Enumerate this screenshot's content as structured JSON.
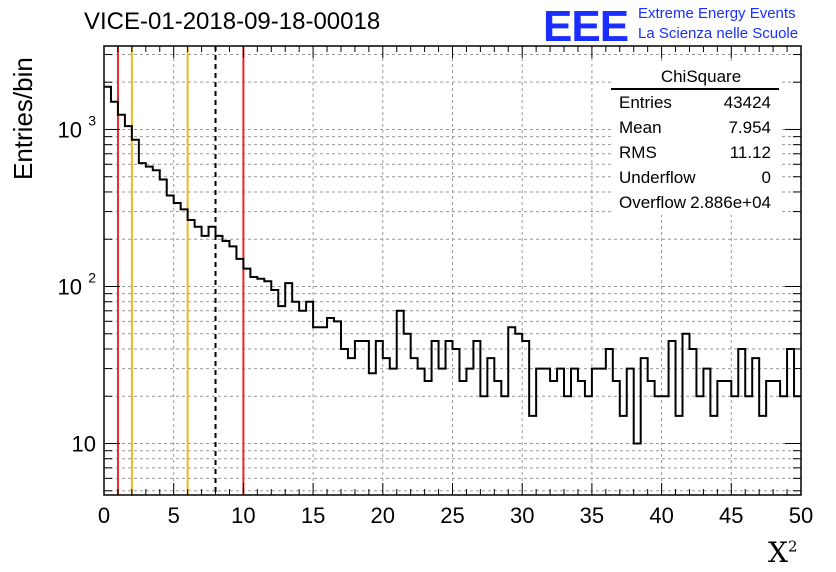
{
  "title": "VICE-01-2018-09-18-00018",
  "logo": {
    "letters": "EEE",
    "line1": "Extreme Energy Events",
    "line2": "La Scienza nelle Scuole"
  },
  "stats": {
    "name": "ChiSquare",
    "rows": [
      {
        "label": "Entries",
        "value": "43424"
      },
      {
        "label": "Mean",
        "value": "7.954"
      },
      {
        "label": "RMS",
        "value": "11.12"
      },
      {
        "label": "Underflow",
        "value": "0"
      },
      {
        "label": "Overflow",
        "value": "2.886e+04"
      }
    ]
  },
  "colors": {
    "red_line": "#e8282a",
    "yellow_line": "#f0b820",
    "black_dashed": "#000000",
    "logo_blue": "#1a2eff"
  },
  "chart_data": {
    "type": "histogram",
    "xlabel": "X",
    "xlabel_sup": "2",
    "ylabel": "Entries/bin",
    "xlim": [
      0,
      50
    ],
    "ylim": [
      4.7,
      3400
    ],
    "y_scale": "log",
    "grid": true,
    "x_ticks": [
      0,
      5,
      10,
      15,
      20,
      25,
      30,
      35,
      40,
      45,
      50
    ],
    "x_tick_labels": [
      "0",
      "5",
      "10",
      "15",
      "20",
      "25",
      "30",
      "35",
      "40",
      "45",
      "50"
    ],
    "y_ticks": [
      {
        "value": 10,
        "label": "10"
      },
      {
        "value": 100,
        "label": "10",
        "exp": "2"
      },
      {
        "value": 1000,
        "label": "10",
        "exp": "3"
      }
    ],
    "bin_width": 0.5,
    "bin_start": 0,
    "values": [
      1870,
      1500,
      1240,
      1050,
      860,
      610,
      580,
      550,
      480,
      380,
      340,
      310,
      265,
      240,
      210,
      240,
      210,
      195,
      180,
      150,
      130,
      115,
      112,
      108,
      95,
      75,
      105,
      80,
      70,
      80,
      55,
      55,
      63,
      60,
      40,
      35,
      45,
      45,
      28,
      45,
      35,
      30,
      70,
      50,
      35,
      30,
      25,
      45,
      30,
      45,
      40,
      25,
      30,
      45,
      20,
      35,
      25,
      20,
      55,
      50,
      45,
      15,
      30,
      30,
      25,
      30,
      20,
      30,
      25,
      20,
      30,
      30,
      40,
      25,
      15,
      30,
      10,
      35,
      25,
      20,
      20,
      45,
      15,
      50,
      40,
      20,
      30,
      15,
      25,
      25,
      20,
      40,
      20,
      35,
      15,
      25,
      25,
      20,
      40,
      20
    ],
    "vlines": [
      {
        "x": 1,
        "color": "#e8282a",
        "style": "solid"
      },
      {
        "x": 2,
        "color": "#f0b820",
        "style": "solid"
      },
      {
        "x": 6,
        "color": "#f0b820",
        "style": "solid"
      },
      {
        "x": 8,
        "color": "#000000",
        "style": "dashed"
      },
      {
        "x": 10,
        "color": "#e8282a",
        "style": "solid"
      }
    ]
  }
}
